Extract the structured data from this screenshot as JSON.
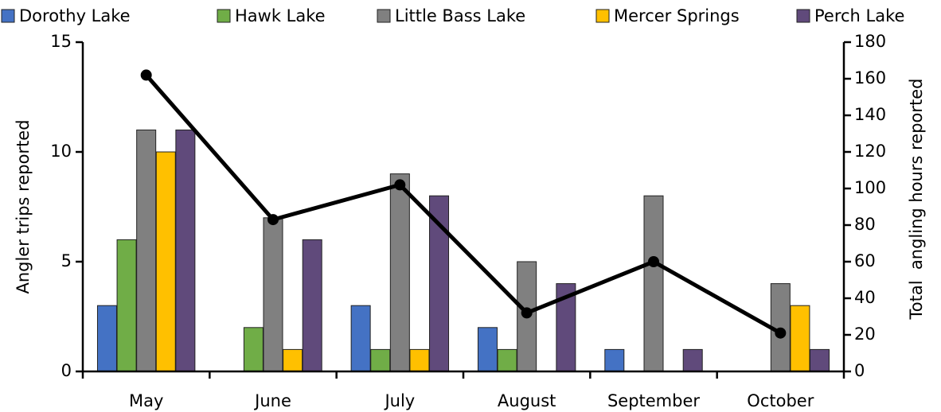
{
  "chart_data": {
    "type": "bar",
    "categories": [
      "May",
      "June",
      "July",
      "August",
      "September",
      "October"
    ],
    "series": [
      {
        "name": "Dorothy Lake",
        "color": "#4472c4",
        "values": [
          3,
          0,
          3,
          2,
          1,
          0
        ]
      },
      {
        "name": "Hawk Lake",
        "color": "#70ad47",
        "values": [
          6,
          2,
          1,
          1,
          0,
          0
        ]
      },
      {
        "name": "Little Bass Lake",
        "color": "#808080",
        "values": [
          11,
          7,
          9,
          5,
          8,
          4
        ]
      },
      {
        "name": "Mercer Springs",
        "color": "#ffc000",
        "values": [
          10,
          1,
          1,
          0,
          0,
          3
        ]
      },
      {
        "name": "Perch Lake",
        "color": "#604a7b",
        "values": [
          11,
          6,
          8,
          4,
          1,
          1
        ]
      },
      {
        "type": "line",
        "axis": "y2",
        "color": "#000000",
        "values": [
          162,
          83,
          102,
          32,
          60,
          21
        ]
      }
    ],
    "ylabel": "Angler trips reported",
    "y2label": "Total  angling hours reported",
    "ylim": [
      0,
      15
    ],
    "yticks": [
      0,
      5,
      10,
      15
    ],
    "y2lim": [
      0,
      180
    ],
    "y2ticks": [
      0,
      20,
      40,
      60,
      80,
      100,
      120,
      140,
      160,
      180
    ],
    "legend": "top"
  }
}
